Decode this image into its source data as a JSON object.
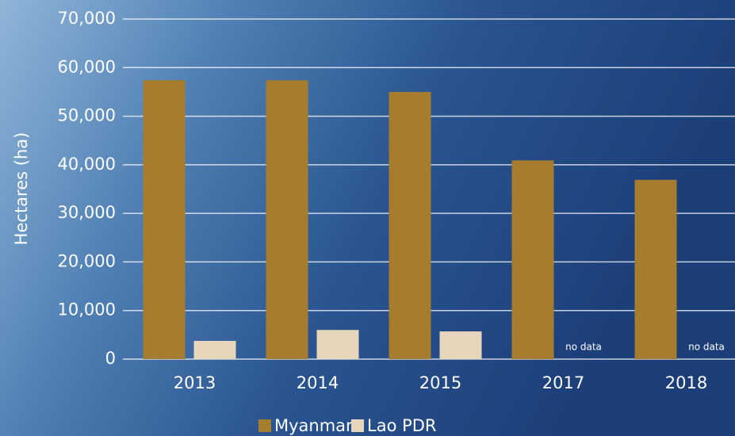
{
  "chart_data": {
    "type": "bar",
    "y_label": "Hectares (ha)",
    "categories": [
      "2013",
      "2014",
      "2015",
      "2017",
      "2018"
    ],
    "series": [
      {
        "name": "Myanmar",
        "color": "#a67c2e",
        "values": [
          57400,
          57400,
          55000,
          40900,
          36900
        ]
      },
      {
        "name": "Lao PDR",
        "color": "#e6d6bc",
        "values": [
          3750,
          6000,
          5700,
          null,
          null
        ],
        "value_labels": [
          null,
          null,
          null,
          "no data",
          "no data"
        ]
      }
    ],
    "ylim": [
      0,
      70000
    ],
    "yticks": [
      0,
      {
        "value": 10000,
        "label": "10,000"
      },
      {
        "value": 20000,
        "label": "20,000"
      },
      {
        "value": 30000,
        "label": "30,000"
      },
      {
        "value": 40000,
        "label": "40,000"
      },
      {
        "value": 50000,
        "label": "50,000"
      },
      {
        "value": 60000,
        "label": "60,000"
      },
      {
        "value": 70000,
        "label": "70,000"
      }
    ],
    "grid": true,
    "legend": "bottom"
  }
}
